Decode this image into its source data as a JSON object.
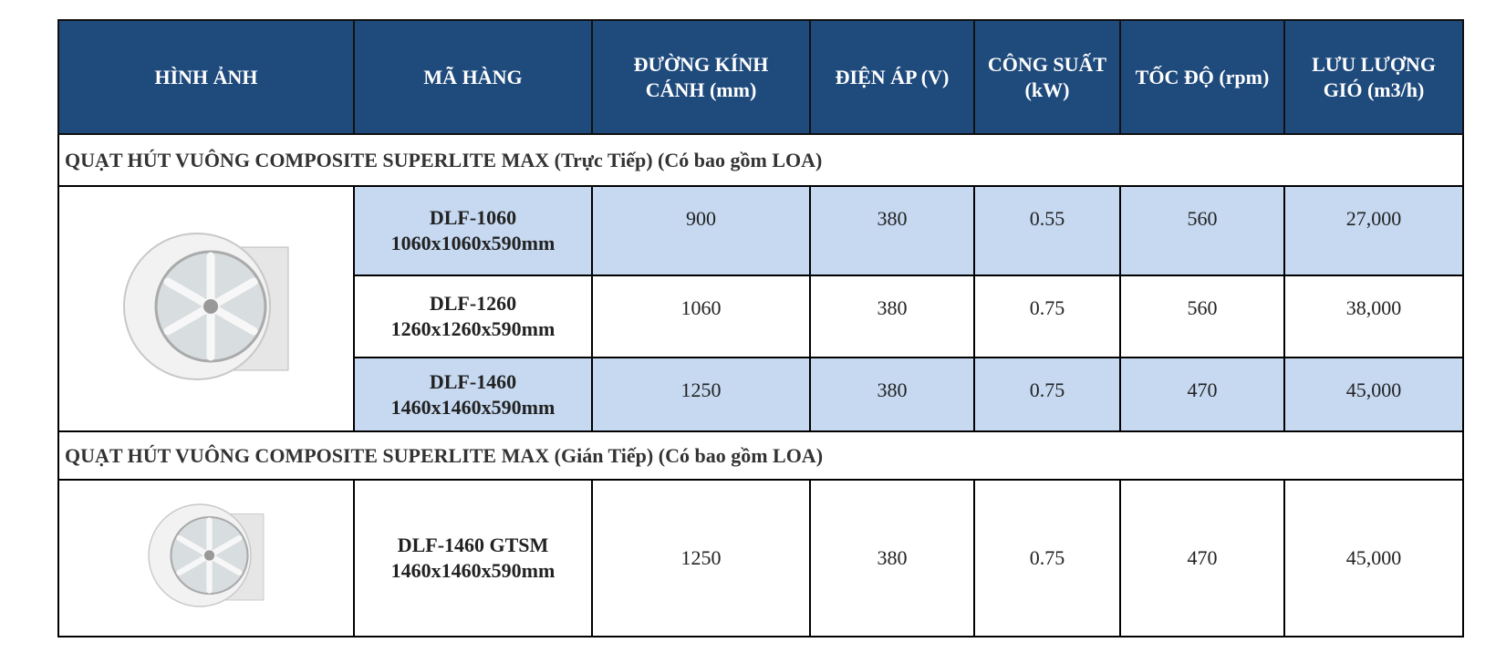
{
  "table": {
    "headers": [
      "HÌNH ẢNH",
      "MÃ HÀNG",
      "ĐƯỜNG KÍNH CÁNH (mm)",
      "ĐIỆN ÁP (V)",
      "CÔNG SUẤT (kW)",
      "TỐC ĐỘ (rpm)",
      "LƯU LƯỢNG GIÓ (m3/h)"
    ],
    "sections": [
      {
        "title": "QUẠT HÚT VUÔNG COMPOSITE SUPERLITE MAX (Trực Tiếp) (Có bao gồm LOA)",
        "rows": [
          {
            "model": "DLF-1060",
            "size": "1060x1060x590mm",
            "cells": [
              "900",
              "380",
              "0.55",
              "560",
              "27,000"
            ]
          },
          {
            "model": "DLF-1260",
            "size": "1260x1260x590mm",
            "cells": [
              "1060",
              "380",
              "0.75",
              "560",
              "38,000"
            ]
          },
          {
            "model": "DLF-1460",
            "size": "1460x1460x590mm",
            "cells": [
              "1250",
              "380",
              "0.75",
              "470",
              "45,000"
            ]
          }
        ]
      },
      {
        "title": "QUẠT HÚT VUÔNG COMPOSITE SUPERLITE MAX (Gián Tiếp) (Có bao gồm LOA)",
        "rows": [
          {
            "model": "DLF-1460 GTSM",
            "size": "1460x1460x590mm",
            "cells": [
              "1250",
              "380",
              "0.75",
              "470",
              "45,000"
            ]
          }
        ]
      }
    ]
  }
}
